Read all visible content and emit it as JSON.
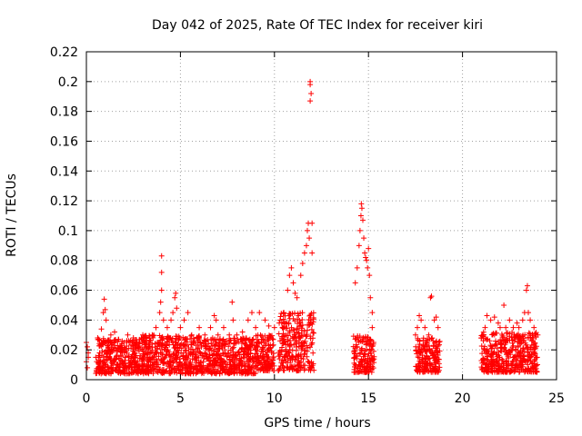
{
  "chart_data": {
    "type": "scatter",
    "title": "Day 042 of 2025, Rate Of TEC Index for receiver kiri",
    "xlabel": "GPS time / hours",
    "ylabel": "ROTI / TECUs",
    "xlim": [
      0,
      25
    ],
    "ylim": [
      0,
      0.22
    ],
    "xticks": [
      0,
      5,
      10,
      15,
      20,
      25
    ],
    "xtick_labels": [
      "0",
      "5",
      "10",
      "15",
      "20",
      "25"
    ],
    "yticks": [
      0,
      0.02,
      0.04,
      0.06,
      0.08,
      0.1,
      0.12,
      0.14,
      0.16,
      0.18,
      0.2,
      0.22
    ],
    "ytick_labels": [
      "0",
      "0.02",
      "0.04",
      "0.06",
      "0.08",
      "0.1",
      "0.12",
      "0.14",
      "0.16",
      "0.18",
      "0.2",
      "0.22"
    ],
    "grid": true,
    "marker": "+",
    "marker_color": "#ff0000",
    "series": [
      {
        "name": "ROTI",
        "points": [
          [
            0.0,
            0.025
          ],
          [
            0.0,
            0.012
          ],
          [
            0.05,
            0.022
          ],
          [
            0.1,
            0.018
          ],
          [
            0.05,
            0.008
          ],
          [
            0.1,
            0.015
          ],
          [
            0.5,
            0.015
          ],
          [
            0.6,
            0.028
          ],
          [
            0.7,
            0.018
          ],
          [
            0.8,
            0.034
          ],
          [
            0.9,
            0.045
          ],
          [
            0.95,
            0.054
          ],
          [
            1.0,
            0.047
          ],
          [
            1.05,
            0.04
          ],
          [
            1.1,
            0.025
          ],
          [
            1.3,
            0.03
          ],
          [
            1.5,
            0.032
          ],
          [
            1.7,
            0.027
          ],
          [
            2.0,
            0.025
          ],
          [
            2.2,
            0.03
          ],
          [
            2.5,
            0.028
          ],
          [
            2.8,
            0.024
          ],
          [
            3.0,
            0.03
          ],
          [
            3.2,
            0.026
          ],
          [
            3.5,
            0.03
          ],
          [
            3.7,
            0.035
          ],
          [
            3.9,
            0.045
          ],
          [
            3.95,
            0.052
          ],
          [
            4.0,
            0.06
          ],
          [
            4.0,
            0.072
          ],
          [
            4.0,
            0.083
          ],
          [
            4.1,
            0.04
          ],
          [
            4.3,
            0.035
          ],
          [
            4.5,
            0.04
          ],
          [
            4.6,
            0.045
          ],
          [
            4.7,
            0.055
          ],
          [
            4.75,
            0.058
          ],
          [
            4.8,
            0.048
          ],
          [
            5.0,
            0.035
          ],
          [
            5.2,
            0.04
          ],
          [
            5.4,
            0.045
          ],
          [
            5.6,
            0.03
          ],
          [
            6.0,
            0.035
          ],
          [
            6.3,
            0.03
          ],
          [
            6.6,
            0.035
          ],
          [
            6.8,
            0.043
          ],
          [
            6.9,
            0.04
          ],
          [
            7.0,
            0.03
          ],
          [
            7.3,
            0.035
          ],
          [
            7.6,
            0.03
          ],
          [
            7.75,
            0.052
          ],
          [
            7.8,
            0.04
          ],
          [
            8.0,
            0.03
          ],
          [
            8.3,
            0.032
          ],
          [
            8.6,
            0.04
          ],
          [
            8.8,
            0.045
          ],
          [
            9.0,
            0.035
          ],
          [
            9.2,
            0.045
          ],
          [
            9.5,
            0.04
          ],
          [
            9.7,
            0.036
          ],
          [
            10.0,
            0.035
          ],
          [
            10.3,
            0.04
          ],
          [
            10.5,
            0.045
          ],
          [
            10.7,
            0.06
          ],
          [
            10.8,
            0.07
          ],
          [
            10.9,
            0.075
          ],
          [
            11.0,
            0.065
          ],
          [
            11.1,
            0.058
          ],
          [
            11.2,
            0.055
          ],
          [
            11.4,
            0.07
          ],
          [
            11.5,
            0.078
          ],
          [
            11.6,
            0.085
          ],
          [
            11.7,
            0.09
          ],
          [
            11.75,
            0.1
          ],
          [
            11.8,
            0.105
          ],
          [
            11.85,
            0.095
          ],
          [
            11.9,
            0.2
          ],
          [
            11.9,
            0.198
          ],
          [
            11.95,
            0.192
          ],
          [
            11.9,
            0.187
          ],
          [
            12.0,
            0.105
          ],
          [
            12.0,
            0.085
          ],
          [
            14.3,
            0.065
          ],
          [
            14.4,
            0.075
          ],
          [
            14.5,
            0.09
          ],
          [
            14.55,
            0.1
          ],
          [
            14.6,
            0.11
          ],
          [
            14.62,
            0.118
          ],
          [
            14.65,
            0.115
          ],
          [
            14.7,
            0.107
          ],
          [
            14.75,
            0.095
          ],
          [
            14.8,
            0.085
          ],
          [
            14.85,
            0.082
          ],
          [
            14.9,
            0.08
          ],
          [
            14.95,
            0.075
          ],
          [
            15.0,
            0.088
          ],
          [
            15.05,
            0.07
          ],
          [
            15.1,
            0.055
          ],
          [
            15.2,
            0.045
          ],
          [
            15.2,
            0.035
          ],
          [
            17.5,
            0.03
          ],
          [
            17.6,
            0.035
          ],
          [
            17.7,
            0.043
          ],
          [
            17.8,
            0.04
          ],
          [
            18.0,
            0.035
          ],
          [
            18.2,
            0.03
          ],
          [
            18.3,
            0.055
          ],
          [
            18.35,
            0.056
          ],
          [
            18.5,
            0.04
          ],
          [
            18.6,
            0.042
          ],
          [
            18.7,
            0.035
          ],
          [
            21.0,
            0.028
          ],
          [
            21.2,
            0.035
          ],
          [
            21.3,
            0.043
          ],
          [
            21.5,
            0.04
          ],
          [
            21.7,
            0.042
          ],
          [
            21.9,
            0.038
          ],
          [
            22.0,
            0.035
          ],
          [
            22.2,
            0.05
          ],
          [
            22.3,
            0.035
          ],
          [
            22.5,
            0.04
          ],
          [
            22.7,
            0.035
          ],
          [
            22.9,
            0.038
          ],
          [
            23.0,
            0.035
          ],
          [
            23.2,
            0.04
          ],
          [
            23.3,
            0.045
          ],
          [
            23.4,
            0.06
          ],
          [
            23.45,
            0.063
          ],
          [
            23.5,
            0.045
          ],
          [
            23.6,
            0.04
          ],
          [
            23.8,
            0.035
          ],
          [
            24.0,
            0.03
          ]
        ],
        "dense_bands": [
          {
            "from": 0.5,
            "to": 3.0,
            "min": 0.004,
            "max": 0.028
          },
          {
            "from": 3.0,
            "to": 6.0,
            "min": 0.004,
            "max": 0.03
          },
          {
            "from": 6.0,
            "to": 9.0,
            "min": 0.004,
            "max": 0.028
          },
          {
            "from": 9.0,
            "to": 10.0,
            "min": 0.006,
            "max": 0.03
          },
          {
            "from": 10.2,
            "to": 12.1,
            "min": 0.006,
            "max": 0.045
          },
          {
            "from": 14.2,
            "to": 15.3,
            "min": 0.005,
            "max": 0.03
          },
          {
            "from": 17.5,
            "to": 18.8,
            "min": 0.005,
            "max": 0.028
          },
          {
            "from": 21.0,
            "to": 24.0,
            "min": 0.005,
            "max": 0.032
          }
        ]
      }
    ]
  }
}
